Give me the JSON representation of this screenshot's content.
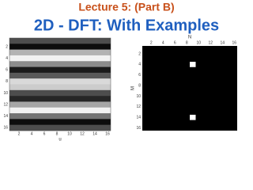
{
  "header": {
    "title": "Lecture 5: (Part B)",
    "subtitle": "2D - DFT: With Examples"
  },
  "left_image": {
    "rows": [
      0.3,
      0.05,
      0.7,
      0.95,
      0.55,
      0.1,
      0.35,
      0.85,
      0.8,
      0.3,
      0.15,
      0.65,
      0.95,
      0.45,
      0.05,
      0.3
    ],
    "xticks": [
      2,
      4,
      6,
      8,
      10,
      12,
      14,
      16
    ],
    "yticks": [
      2,
      4,
      6,
      8,
      10,
      12,
      14,
      16
    ],
    "xlabel": "u"
  },
  "right_image": {
    "size": 16,
    "bright_cells": [
      [
        4,
        9
      ],
      [
        14,
        9
      ]
    ],
    "xticks": [
      2,
      4,
      6,
      8,
      10,
      12,
      14,
      16
    ],
    "yticks": [
      2,
      4,
      6,
      8,
      10,
      12,
      14,
      16
    ],
    "xlabel": "N",
    "ylabel": "M"
  }
}
